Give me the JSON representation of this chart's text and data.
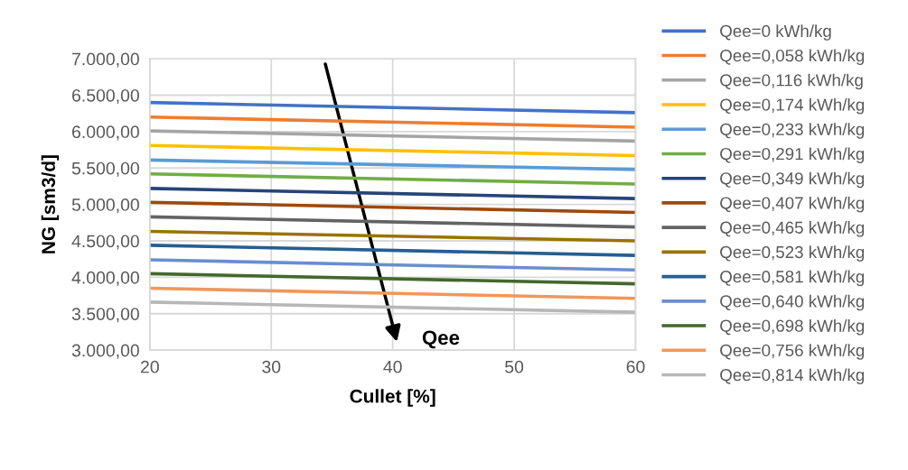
{
  "chart_data": {
    "type": "line",
    "xlabel": "Cullet [%]",
    "ylabel": "NG [sm3/d]",
    "x": [
      20,
      60
    ],
    "xlim": [
      20,
      60
    ],
    "xticks": [
      20,
      30,
      40,
      50,
      60
    ],
    "ylim": [
      3000,
      7000
    ],
    "yticks": [
      {
        "value": 3000,
        "label": "3.000,00"
      },
      {
        "value": 3500,
        "label": "3.500,00"
      },
      {
        "value": 4000,
        "label": "4.000,00"
      },
      {
        "value": 4500,
        "label": "4.500,00"
      },
      {
        "value": 5000,
        "label": "5.000,00"
      },
      {
        "value": 5500,
        "label": "5.500,00"
      },
      {
        "value": 6000,
        "label": "6.000,00"
      },
      {
        "value": 6500,
        "label": "6.500,00"
      },
      {
        "value": 7000,
        "label": "7.000,00"
      }
    ],
    "grid": true,
    "legend": "right",
    "marker": "none",
    "line_style": "solid",
    "annotations": [
      "Qee"
    ],
    "series": [
      {
        "name": "Qee=0 kWh/kg",
        "color": "#4472c4",
        "values": [
          6400,
          6260
        ]
      },
      {
        "name": "Qee=0,058 kWh/kg",
        "color": "#ed7d31",
        "values": [
          6200,
          6060
        ]
      },
      {
        "name": "Qee=0,116 kWh/kg",
        "color": "#a5a5a5",
        "values": [
          6010,
          5870
        ]
      },
      {
        "name": "Qee=0,174 kWh/kg",
        "color": "#ffc000",
        "values": [
          5810,
          5670
        ]
      },
      {
        "name": "Qee=0,233 kWh/kg",
        "color": "#5b9bd5",
        "values": [
          5610,
          5480
        ]
      },
      {
        "name": "Qee=0,291 kWh/kg",
        "color": "#70ad47",
        "values": [
          5420,
          5280
        ]
      },
      {
        "name": "Qee=0,349 kWh/kg",
        "color": "#264478",
        "values": [
          5220,
          5080
        ]
      },
      {
        "name": "Qee=0,407 kWh/kg",
        "color": "#9e480e",
        "values": [
          5030,
          4890
        ]
      },
      {
        "name": "Qee=0,465 kWh/kg",
        "color": "#636363",
        "values": [
          4830,
          4690
        ]
      },
      {
        "name": "Qee=0,523 kWh/kg",
        "color": "#997300",
        "values": [
          4630,
          4500
        ]
      },
      {
        "name": "Qee=0,581 kWh/kg",
        "color": "#255e91",
        "values": [
          4440,
          4300
        ]
      },
      {
        "name": "Qee=0,640 kWh/kg",
        "color": "#698ed0",
        "values": [
          4240,
          4100
        ]
      },
      {
        "name": "Qee=0,698 kWh/kg",
        "color": "#43682b",
        "values": [
          4050,
          3910
        ]
      },
      {
        "name": "Qee=0,756 kWh/kg",
        "color": "#f1975a",
        "values": [
          3850,
          3710
        ]
      },
      {
        "name": "Qee=0,814 kWh/kg",
        "color": "#b7b7b7",
        "values": [
          3660,
          3520
        ]
      }
    ]
  }
}
